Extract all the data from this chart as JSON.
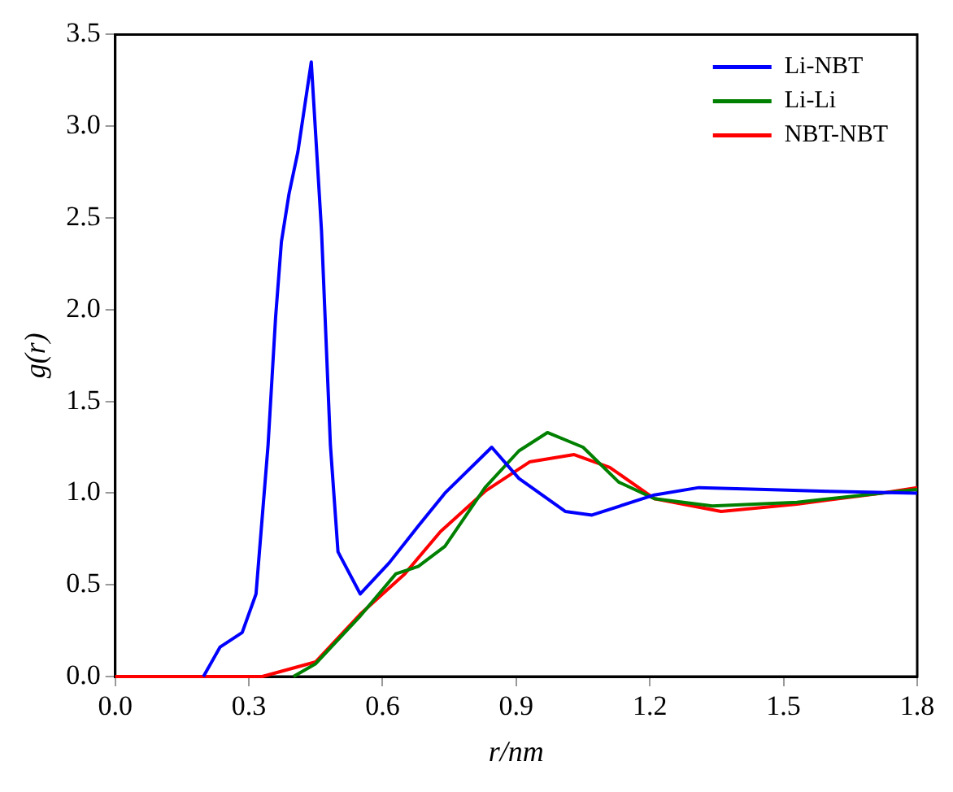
{
  "chart_data": {
    "type": "line",
    "xlabel": "r/nm",
    "ylabel": "g(r)",
    "xlim": [
      0,
      1.8
    ],
    "ylim": [
      0,
      3.5
    ],
    "xticks": [
      {
        "value": 0,
        "label": "0.0"
      },
      {
        "value": 0.3,
        "label": "0.3"
      },
      {
        "value": 0.6,
        "label": "0.6"
      },
      {
        "value": 0.9,
        "label": "0.9"
      },
      {
        "value": 1.2,
        "label": "1.2"
      },
      {
        "value": 1.5,
        "label": "1.5"
      },
      {
        "value": 1.8,
        "label": "1.8"
      }
    ],
    "yticks": [
      {
        "value": 0,
        "label": "0.0"
      },
      {
        "value": 0.5,
        "label": "0.5"
      },
      {
        "value": 1,
        "label": "1.0"
      },
      {
        "value": 1.5,
        "label": "1.5"
      },
      {
        "value": 2,
        "label": "2.0"
      },
      {
        "value": 2.5,
        "label": "2.5"
      },
      {
        "value": 3,
        "label": "3.0"
      },
      {
        "value": 3.5,
        "label": "3.5"
      }
    ],
    "grid": false,
    "legend": "top right",
    "marker": "none",
    "line_style": "solid",
    "series": [
      {
        "name": "Li-NBT",
        "color": "#0000ff",
        "x": [
          0.198,
          0.235,
          0.285,
          0.316,
          0.343,
          0.36,
          0.373,
          0.39,
          0.41,
          0.44,
          0.463,
          0.483,
          0.5,
          0.55,
          0.615,
          0.68,
          0.74,
          0.845,
          0.906,
          1.01,
          1.07,
          1.21,
          1.31,
          1.46,
          1.6,
          1.8
        ],
        "values": [
          0,
          0.16,
          0.24,
          0.45,
          1.26,
          1.96,
          2.37,
          2.63,
          2.86,
          3.35,
          2.43,
          1.26,
          0.68,
          0.45,
          0.62,
          0.82,
          1.0,
          1.25,
          1.08,
          0.9,
          0.88,
          0.99,
          1.03,
          1.02,
          1.01,
          1.0
        ]
      },
      {
        "name": "Li-Li",
        "color": "#008000",
        "x": [
          0.4,
          0.45,
          0.55,
          0.63,
          0.68,
          0.74,
          0.83,
          0.906,
          0.97,
          1.05,
          1.13,
          1.21,
          1.34,
          1.53,
          1.72,
          1.8
        ],
        "values": [
          0,
          0.07,
          0.33,
          0.56,
          0.6,
          0.71,
          1.03,
          1.23,
          1.33,
          1.25,
          1.06,
          0.97,
          0.93,
          0.95,
          1.0,
          1.02
        ]
      },
      {
        "name": "NBT-NBT",
        "color": "#ff0000",
        "x": [
          0,
          0.33,
          0.36,
          0.45,
          0.55,
          0.65,
          0.73,
          0.83,
          0.93,
          1.03,
          1.11,
          1.21,
          1.36,
          1.53,
          1.72,
          1.8
        ],
        "values": [
          0,
          0,
          0.02,
          0.08,
          0.34,
          0.56,
          0.79,
          1.01,
          1.17,
          1.21,
          1.14,
          0.97,
          0.9,
          0.94,
          1.0,
          1.03
        ]
      }
    ]
  }
}
